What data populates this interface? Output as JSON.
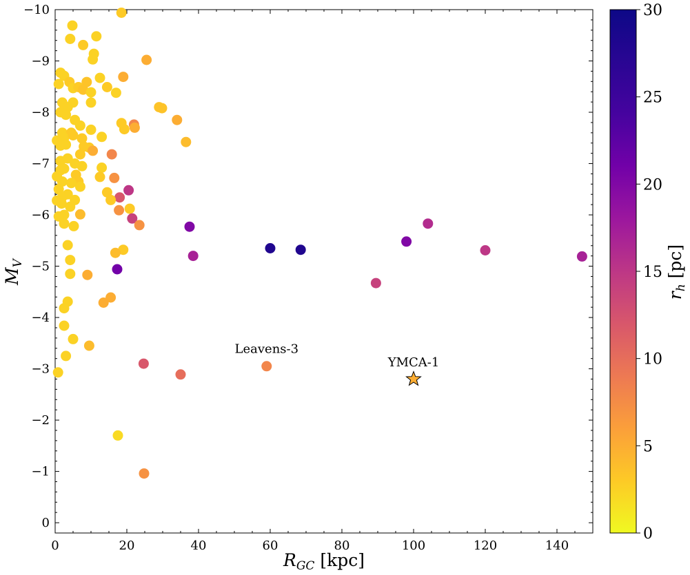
{
  "chart_data": {
    "type": "scatter",
    "x_axis": {
      "label_prefix": "R",
      "label_sub": "GC",
      "label_suffix": " [kpc]",
      "range": [
        0,
        150
      ],
      "ticks": [
        0,
        20,
        40,
        60,
        80,
        100,
        120,
        140
      ],
      "tick_labels": [
        "0",
        "20",
        "40",
        "60",
        "80",
        "100",
        "120",
        "140"
      ]
    },
    "y_axis": {
      "label_prefix": "M",
      "label_sub": "V",
      "range": [
        0.2,
        -10
      ],
      "inverted": true,
      "ticks": [
        0,
        -1,
        -2,
        -3,
        -4,
        -5,
        -6,
        -7,
        -8,
        -9,
        -10
      ],
      "tick_labels": [
        "0",
        "−1",
        "−2",
        "−3",
        "−4",
        "−5",
        "−6",
        "−7",
        "−8",
        "−9",
        "−10"
      ]
    },
    "colorbar": {
      "label_prefix": "r",
      "label_sub": "h",
      "label_suffix": " [pc]",
      "range": [
        0,
        30
      ],
      "ticks": [
        0,
        5,
        10,
        15,
        20,
        25,
        30
      ],
      "tick_labels": [
        "0",
        "5",
        "10",
        "15",
        "20",
        "25",
        "30"
      ],
      "colormap": "plasma_r"
    },
    "points": [
      [
        18.5,
        -9.94,
        3
      ],
      [
        4.8,
        -9.69,
        2.5
      ],
      [
        11.5,
        -9.48,
        2.5
      ],
      [
        4.2,
        -9.43,
        2.5
      ],
      [
        7.8,
        -9.31,
        3
      ],
      [
        10.8,
        -9.14,
        2.5
      ],
      [
        10.5,
        -9.03,
        2.5
      ],
      [
        25.5,
        -9.02,
        5
      ],
      [
        1.5,
        -8.77,
        2.5
      ],
      [
        2.5,
        -8.71,
        2.5
      ],
      [
        19,
        -8.69,
        5
      ],
      [
        12.5,
        -8.67,
        2.5
      ],
      [
        1,
        -8.55,
        2.5
      ],
      [
        4,
        -8.59,
        3
      ],
      [
        8.8,
        -8.59,
        3.5
      ],
      [
        14.5,
        -8.49,
        3
      ],
      [
        5,
        -8.47,
        2.5
      ],
      [
        6.5,
        -8.49,
        3
      ],
      [
        7.8,
        -8.44,
        3.5
      ],
      [
        10,
        -8.39,
        2.5
      ],
      [
        17,
        -8.38,
        2.5
      ],
      [
        2,
        -8.19,
        2.5
      ],
      [
        5,
        -8.19,
        2.5
      ],
      [
        10,
        -8.19,
        2.5
      ],
      [
        3.5,
        -8.1,
        2.5
      ],
      [
        29,
        -8.1,
        3.5
      ],
      [
        29.8,
        -8.08,
        3.5
      ],
      [
        1.5,
        -8.0,
        2.5
      ],
      [
        3,
        -7.95,
        2.5
      ],
      [
        5.5,
        -7.85,
        2.5
      ],
      [
        34,
        -7.85,
        5
      ],
      [
        7,
        -7.74,
        2.5
      ],
      [
        18.5,
        -7.79,
        3
      ],
      [
        22,
        -7.76,
        8
      ],
      [
        19.3,
        -7.67,
        3
      ],
      [
        22.2,
        -7.7,
        5
      ],
      [
        2,
        -7.6,
        2.5
      ],
      [
        4.5,
        -7.6,
        3
      ],
      [
        10,
        -7.66,
        2.5
      ],
      [
        2.5,
        -7.5,
        2.5
      ],
      [
        5,
        -7.55,
        3
      ],
      [
        7.5,
        -7.49,
        3
      ],
      [
        13,
        -7.52,
        2.5
      ],
      [
        36.5,
        -7.42,
        4
      ],
      [
        0.5,
        -7.45,
        2.5
      ],
      [
        1.5,
        -7.35,
        2.5
      ],
      [
        3,
        -7.37,
        2.5
      ],
      [
        8,
        -7.33,
        3
      ],
      [
        9.5,
        -7.31,
        3
      ],
      [
        7,
        -7.18,
        3
      ],
      [
        10.5,
        -7.25,
        5
      ],
      [
        3.5,
        -7.1,
        2.5
      ],
      [
        1.5,
        -7.05,
        2.5
      ],
      [
        5.5,
        -7.0,
        2.5
      ],
      [
        2.5,
        -6.9,
        2.5
      ],
      [
        7.5,
        -6.95,
        2.5
      ],
      [
        15.8,
        -7.18,
        8
      ],
      [
        13,
        -6.92,
        2.5
      ],
      [
        1.5,
        -6.87,
        2.5
      ],
      [
        5.8,
        -6.78,
        3
      ],
      [
        0.5,
        -6.75,
        2.5
      ],
      [
        12.5,
        -6.74,
        3
      ],
      [
        2,
        -6.65,
        2.5
      ],
      [
        6.5,
        -6.65,
        3
      ],
      [
        16.5,
        -6.72,
        7
      ],
      [
        4.5,
        -6.62,
        2.5
      ],
      [
        7,
        -6.55,
        2.5
      ],
      [
        1,
        -6.5,
        2.5
      ],
      [
        14.5,
        -6.44,
        3
      ],
      [
        20.5,
        -6.48,
        15
      ],
      [
        3.5,
        -6.4,
        2.5
      ],
      [
        2,
        -6.35,
        2.5
      ],
      [
        18,
        -6.34,
        12
      ],
      [
        5.5,
        -6.29,
        2.5
      ],
      [
        15.5,
        -6.29,
        3
      ],
      [
        0.5,
        -6.28,
        2.5
      ],
      [
        1.8,
        -6.22,
        2.5
      ],
      [
        4.2,
        -6.16,
        2.5
      ],
      [
        17.8,
        -6.09,
        7
      ],
      [
        20.8,
        -6.12,
        3
      ],
      [
        7,
        -6.01,
        4
      ],
      [
        2.5,
        -6.0,
        2.5
      ],
      [
        1,
        -5.97,
        2.5
      ],
      [
        21.5,
        -5.93,
        14
      ],
      [
        2.5,
        -5.83,
        2.5
      ],
      [
        23.5,
        -5.8,
        7
      ],
      [
        5.2,
        -5.78,
        2.5
      ],
      [
        37.5,
        -5.77,
        20
      ],
      [
        104,
        -5.83,
        16
      ],
      [
        98,
        -5.48,
        20
      ],
      [
        60,
        -5.35,
        28
      ],
      [
        68.5,
        -5.32,
        28
      ],
      [
        3.5,
        -5.41,
        2.5
      ],
      [
        120,
        -5.31,
        15
      ],
      [
        19,
        -5.32,
        3
      ],
      [
        16.8,
        -5.26,
        4
      ],
      [
        38.5,
        -5.2,
        17
      ],
      [
        147,
        -5.19,
        17
      ],
      [
        4.2,
        -5.12,
        2.5
      ],
      [
        17.3,
        -4.94,
        21
      ],
      [
        4.2,
        -4.85,
        2.5
      ],
      [
        9,
        -4.83,
        5
      ],
      [
        89.5,
        -4.67,
        14
      ],
      [
        15.5,
        -4.39,
        5
      ],
      [
        3.5,
        -4.31,
        2.5
      ],
      [
        13.5,
        -4.29,
        5
      ],
      [
        2.5,
        -4.18,
        2.5
      ],
      [
        2.5,
        -3.84,
        2.5
      ],
      [
        5,
        -3.58,
        2.5
      ],
      [
        9.5,
        -3.45,
        4
      ],
      [
        3,
        -3.25,
        2.5
      ],
      [
        24.7,
        -3.1,
        12
      ],
      [
        59,
        -3.05,
        8
      ],
      [
        35,
        -2.89,
        10
      ],
      [
        0.8,
        -2.93,
        2.5
      ],
      [
        17.5,
        -1.7,
        2
      ],
      [
        24.8,
        -0.96,
        7
      ]
    ],
    "special_point": {
      "name": "YMCA-1",
      "x": 100,
      "y": -2.8,
      "rh": 5,
      "marker": "star"
    },
    "annotations": [
      {
        "text": "Leavens-3",
        "x": 59,
        "y": -3.31
      },
      {
        "text": "YMCA-1",
        "x": 100,
        "y": -3.05
      }
    ]
  }
}
